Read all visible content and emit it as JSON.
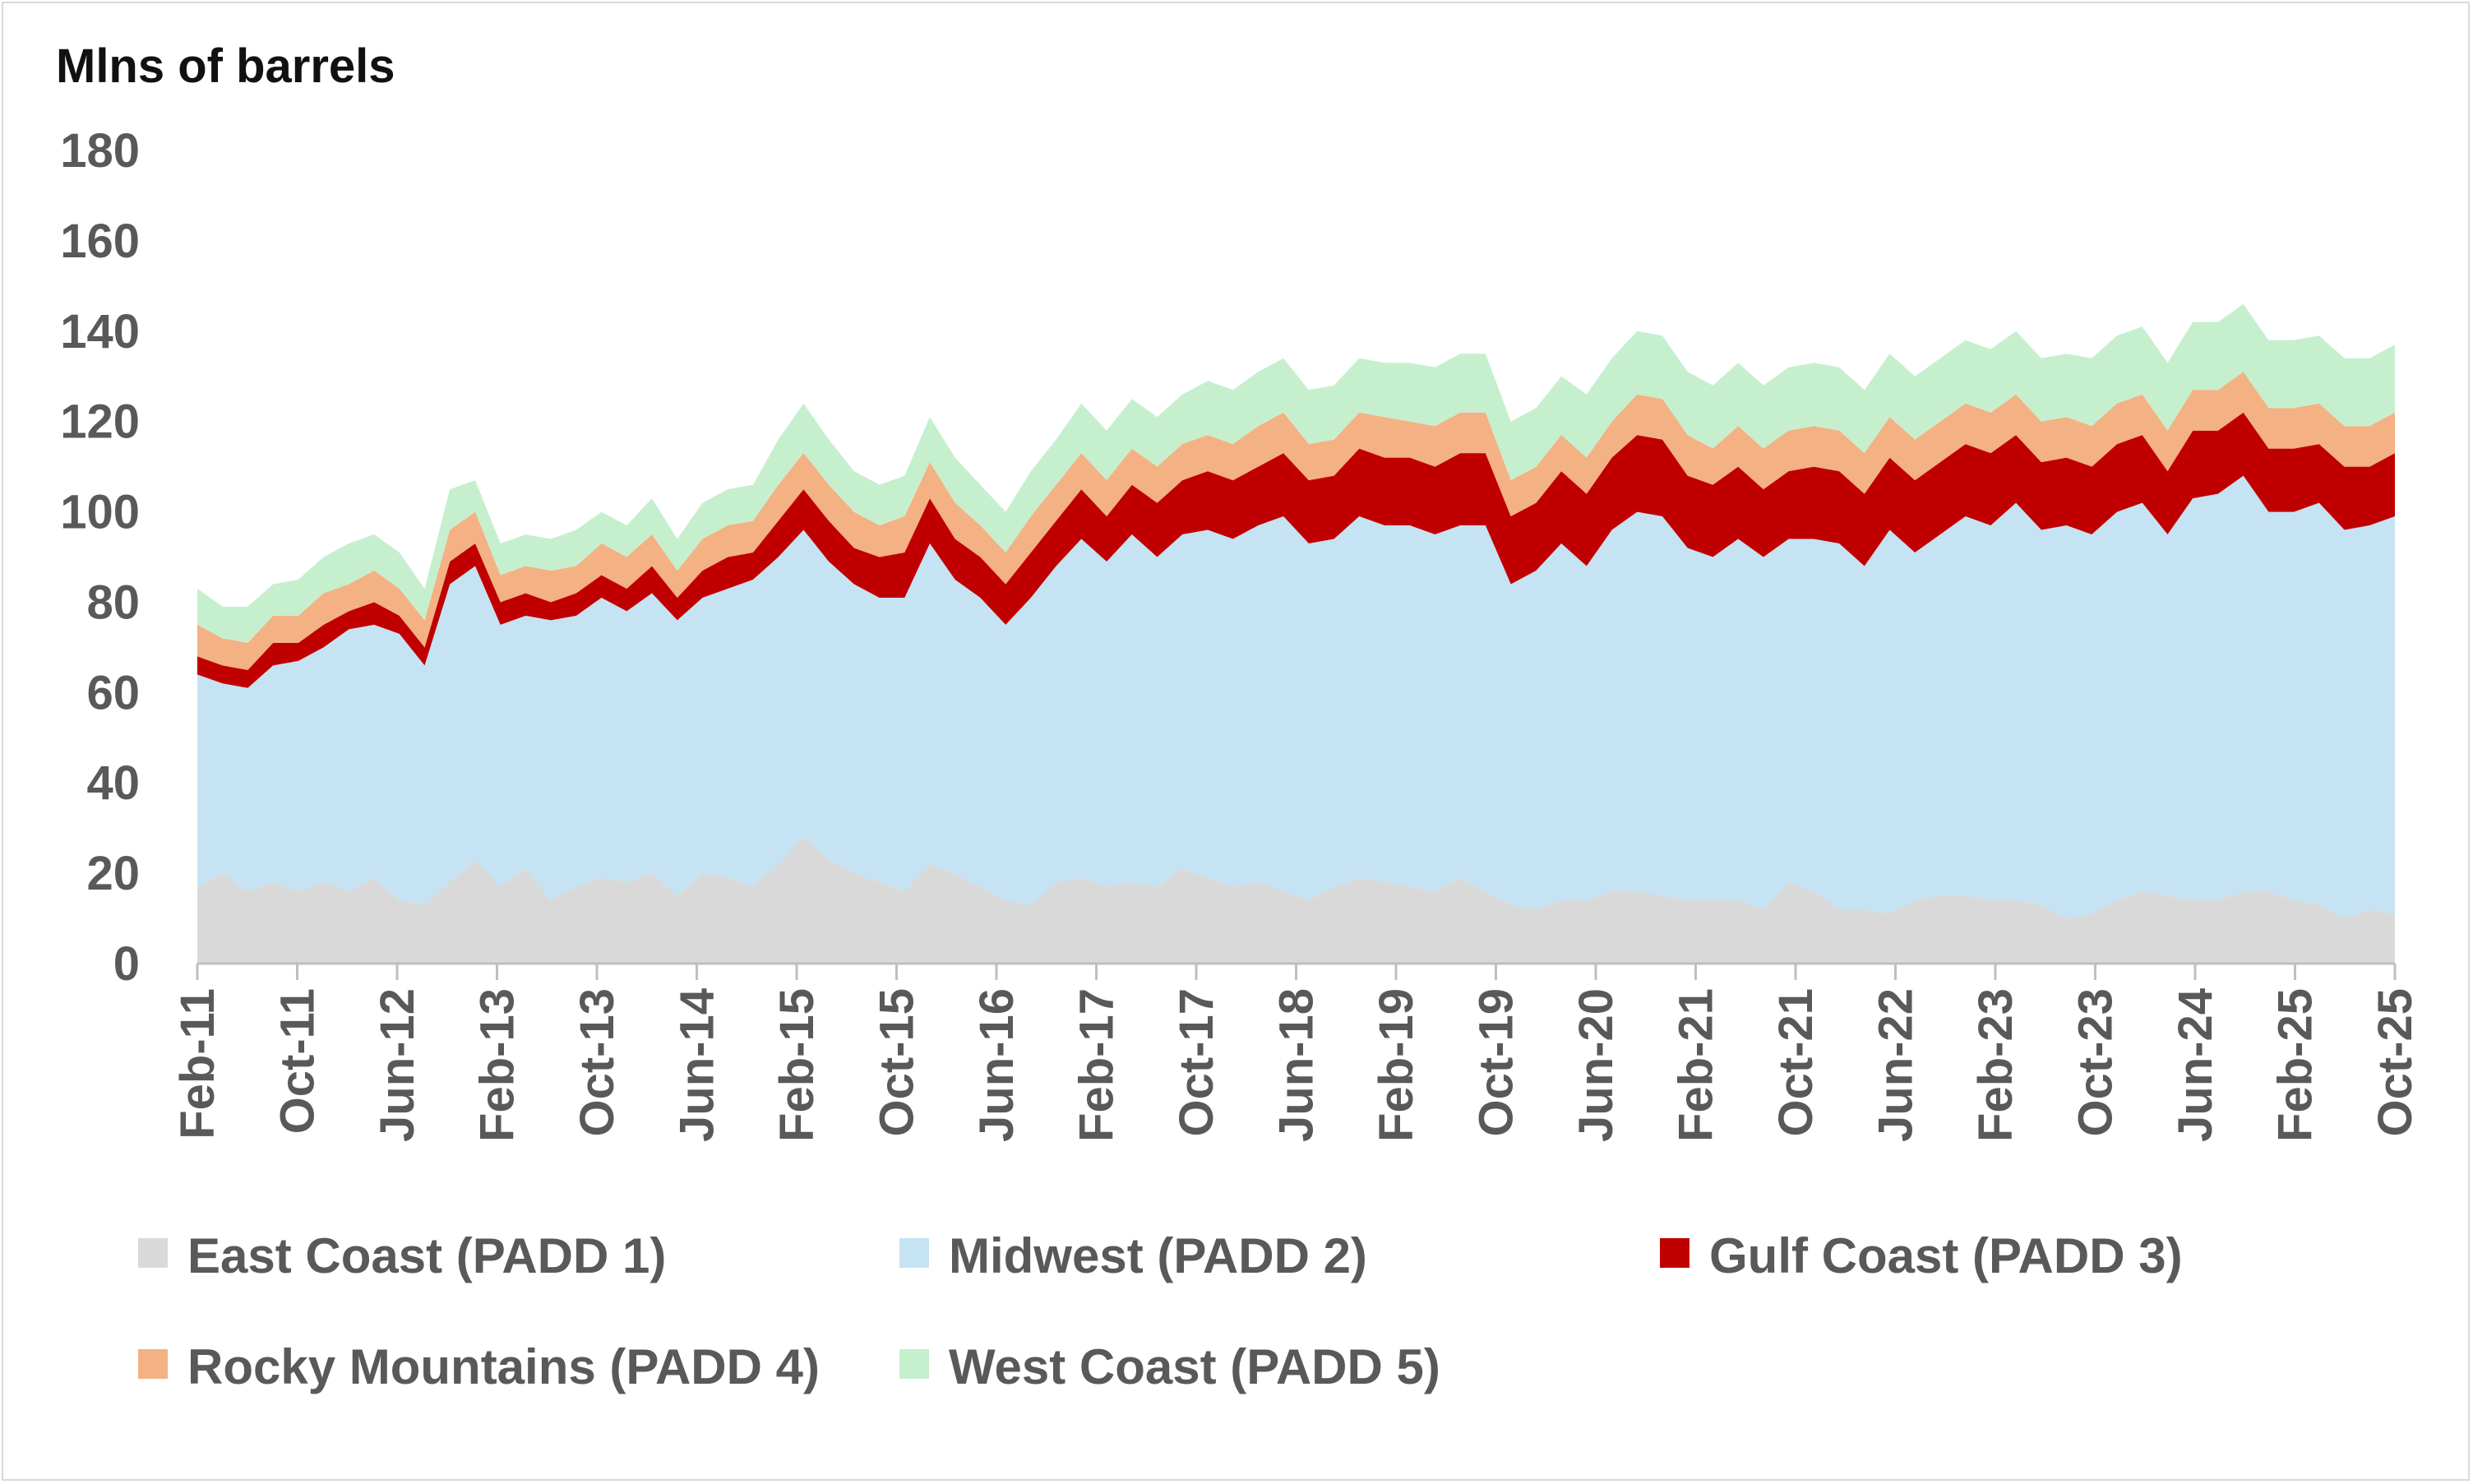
{
  "chart_data": {
    "type": "area",
    "stacked": true,
    "title": "",
    "ylabel": "Mlns of barrels",
    "xlabel": "",
    "ylim": [
      0,
      180
    ],
    "yticks": [
      0,
      20,
      40,
      60,
      80,
      100,
      120,
      140,
      160,
      180
    ],
    "tick_labels": [
      "Feb-11",
      "Oct-11",
      "Jun-12",
      "Feb-13",
      "Oct-13",
      "Jun-14",
      "Feb-15",
      "Oct-15",
      "Jun-16",
      "Feb-17",
      "Oct-17",
      "Jun-18",
      "Feb-19",
      "Oct-19",
      "Jun-20",
      "Feb-21",
      "Oct-21",
      "Jun-22",
      "Feb-23",
      "Oct-23",
      "Jun-24",
      "Feb-25",
      "Oct-25"
    ],
    "months_per_point": 2,
    "legend_position": "bottom",
    "series": [
      {
        "name": "East Coast (PADD 1)",
        "color": "#d9d9d9",
        "values": [
          17,
          20,
          16,
          18,
          16,
          18,
          16,
          19,
          14,
          13,
          18,
          23,
          17,
          21,
          14,
          17,
          19,
          18,
          20,
          15,
          20,
          19,
          17,
          22,
          28,
          23,
          20,
          18,
          16,
          22,
          20,
          17,
          14,
          13,
          18,
          19,
          17,
          18,
          17,
          21,
          19,
          17,
          18,
          16,
          14,
          17,
          19,
          18,
          17,
          16,
          19,
          16,
          13,
          12,
          14,
          14,
          16,
          16,
          15,
          14,
          14,
          14,
          12,
          18,
          16,
          12,
          12,
          11,
          14,
          15,
          15,
          14,
          14,
          13,
          10,
          11,
          14,
          16,
          15,
          14,
          14,
          16,
          16,
          14,
          13,
          10,
          12,
          11
        ]
      },
      {
        "name": "Midwest (PADD 2)",
        "color": "#c5e3f3",
        "values": [
          47,
          42,
          45,
          48,
          51,
          52,
          58,
          56,
          59,
          53,
          66,
          65,
          58,
          56,
          62,
          60,
          62,
          60,
          62,
          61,
          61,
          64,
          68,
          68,
          68,
          66,
          64,
          63,
          65,
          71,
          65,
          64,
          61,
          68,
          70,
          75,
          72,
          77,
          73,
          74,
          77,
          77,
          79,
          83,
          79,
          77,
          80,
          79,
          80,
          79,
          78,
          81,
          71,
          75,
          79,
          74,
          80,
          84,
          84,
          78,
          76,
          80,
          78,
          76,
          78,
          81,
          76,
          85,
          77,
          80,
          84,
          83,
          88,
          83,
          87,
          84,
          86,
          86,
          80,
          89,
          90,
          92,
          84,
          86,
          89,
          86,
          85,
          88
        ]
      },
      {
        "name": "Gulf Coast (PADD 3)",
        "color": "#c00000",
        "values": [
          4,
          4,
          4,
          5,
          4,
          5,
          4,
          5,
          4,
          4,
          5,
          5,
          5,
          5,
          4,
          5,
          5,
          5,
          6,
          5,
          6,
          7,
          6,
          8,
          9,
          9,
          8,
          9,
          10,
          10,
          9,
          9,
          9,
          10,
          10,
          11,
          10,
          11,
          12,
          12,
          13,
          13,
          13,
          14,
          14,
          14,
          15,
          15,
          15,
          15,
          16,
          16,
          15,
          15,
          16,
          16,
          16,
          17,
          17,
          16,
          16,
          16,
          15,
          15,
          16,
          16,
          16,
          16,
          16,
          16,
          16,
          16,
          15,
          15,
          15,
          15,
          15,
          15,
          14,
          15,
          14,
          14,
          14,
          14,
          13,
          14,
          13,
          14
        ]
      },
      {
        "name": "Rocky Mountains (PADD 4)",
        "color": "#f4b183",
        "values": [
          7,
          6,
          6,
          6,
          6,
          7,
          6,
          7,
          6,
          6,
          7,
          7,
          6,
          6,
          7,
          6,
          7,
          7,
          7,
          6,
          7,
          7,
          7,
          8,
          8,
          8,
          8,
          7,
          8,
          8,
          8,
          7,
          7,
          8,
          8,
          8,
          8,
          8,
          8,
          8,
          8,
          8,
          9,
          9,
          8,
          8,
          8,
          9,
          8,
          9,
          9,
          9,
          8,
          8,
          8,
          8,
          8,
          9,
          9,
          9,
          8,
          9,
          9,
          9,
          9,
          9,
          9,
          9,
          9,
          9,
          9,
          9,
          9,
          9,
          9,
          9,
          9,
          9,
          9,
          9,
          9,
          9,
          9,
          9,
          9,
          9,
          9,
          9
        ]
      },
      {
        "name": "West Coast (PADD 5)",
        "color": "#c6efce",
        "values": [
          8,
          7,
          8,
          7,
          8,
          8,
          9,
          8,
          8,
          7,
          9,
          7,
          7,
          7,
          7,
          8,
          7,
          7,
          8,
          7,
          8,
          8,
          8,
          10,
          11,
          10,
          9,
          9,
          9,
          10,
          10,
          9,
          9,
          10,
          10,
          11,
          11,
          11,
          11,
          11,
          12,
          12,
          12,
          12,
          12,
          12,
          12,
          12,
          13,
          13,
          13,
          13,
          13,
          13,
          13,
          14,
          14,
          14,
          14,
          14,
          14,
          14,
          14,
          14,
          14,
          14,
          14,
          14,
          14,
          14,
          14,
          14,
          14,
          14,
          14,
          15,
          15,
          15,
          15,
          15,
          15,
          15,
          15,
          15,
          15,
          15,
          15,
          15
        ]
      }
    ]
  }
}
